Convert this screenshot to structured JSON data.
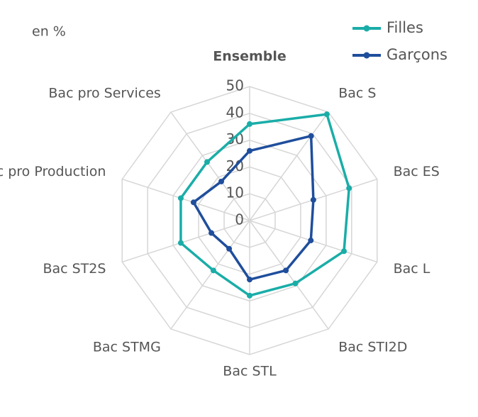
{
  "chart_data": {
    "type": "radar",
    "annotation": "en %",
    "categories": [
      "Ensemble",
      "Bac S",
      "Bac ES",
      "Bac L",
      "Bac STI2D",
      "Bac STL",
      "Bac STMG",
      "Bac ST2S",
      "Bac pro Production",
      "Bac pro Services"
    ],
    "series": [
      {
        "name": "Filles",
        "color": "#1aada8",
        "values": [
          36,
          49,
          39,
          37,
          29,
          28,
          23,
          27,
          27,
          27
        ]
      },
      {
        "name": "Garçons",
        "color": "#1f4e9c",
        "values": [
          26,
          39,
          25,
          24,
          23,
          22,
          13,
          15,
          22,
          18
        ]
      }
    ],
    "ylim": [
      0,
      50
    ],
    "yticks": [
      0,
      10,
      20,
      30,
      40,
      50
    ],
    "grid": true,
    "legend": "top-right"
  }
}
